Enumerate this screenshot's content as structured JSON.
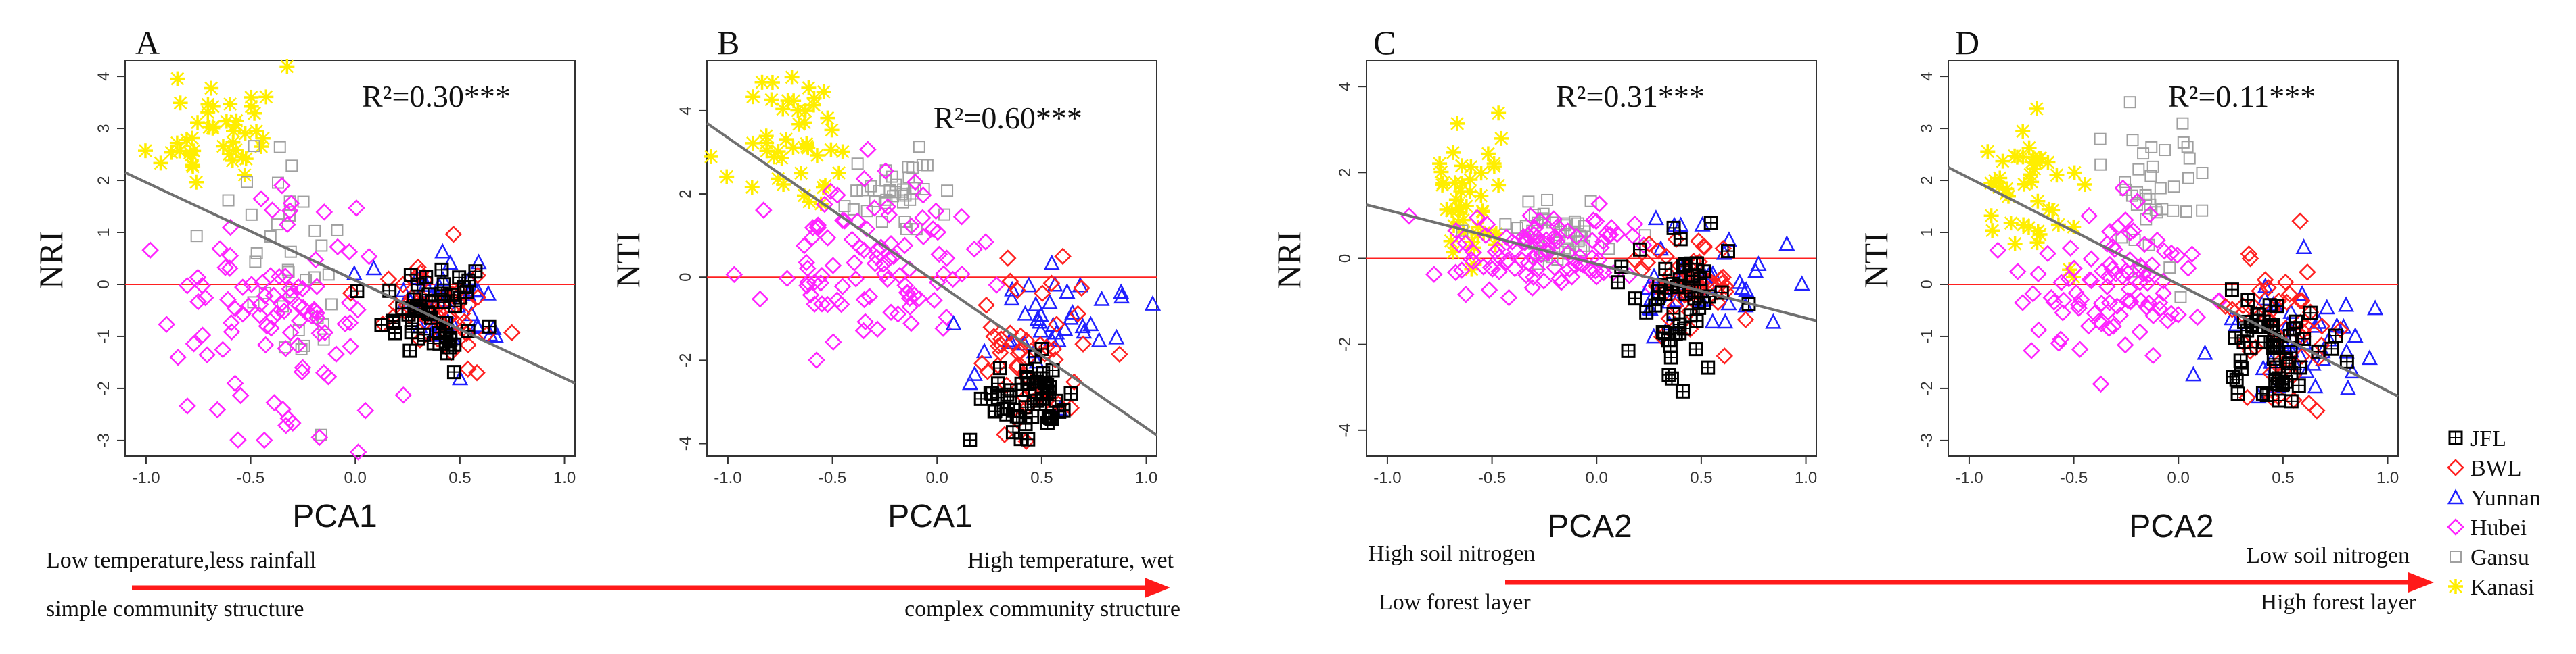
{
  "chart_data": [
    {
      "panel": "A",
      "type": "scatter",
      "xlabel": "PCA1",
      "ylabel": "NRI",
      "r2_label": "R²=0.30***",
      "xlim": [
        -1.1,
        1.05
      ],
      "ylim": [
        -3.3,
        4.3
      ],
      "xticks": [
        -1.0,
        -0.5,
        0.0,
        0.5,
        1.0
      ],
      "xtick_labels": [
        "-1.0",
        "-0.5",
        "0.0",
        "0.5",
        "1.0"
      ],
      "yticks": [
        -3,
        -2,
        -1,
        0,
        1,
        2,
        3,
        4
      ],
      "ytick_labels": [
        "-3",
        "-2",
        "-1",
        "0",
        "1",
        "2",
        "3",
        "4"
      ],
      "reference_line_y": 0,
      "fit_line": [
        [
          -1.1,
          2.15
        ],
        [
          1.05,
          -1.9
        ]
      ],
      "clusters": [
        {
          "group": "Kanasi",
          "cx": -0.65,
          "sx": 0.14,
          "cy": 3.0,
          "sy": 0.6,
          "n": 45,
          "seed": 11
        },
        {
          "group": "Gansu",
          "cx": -0.28,
          "sx": 0.18,
          "cy": 0.5,
          "sy": 1.1,
          "n": 38,
          "seed": 12
        },
        {
          "group": "Hubei",
          "cx": -0.38,
          "sx": 0.26,
          "cy": -0.6,
          "sy": 1.2,
          "n": 95,
          "seed": 13
        },
        {
          "group": "Yunnan",
          "cx": 0.52,
          "sx": 0.18,
          "cy": -0.35,
          "sy": 0.45,
          "n": 40,
          "seed": 14
        },
        {
          "group": "BWL",
          "cx": 0.42,
          "sx": 0.14,
          "cy": -0.45,
          "sy": 0.55,
          "n": 50,
          "seed": 15
        },
        {
          "group": "JFL",
          "cx": 0.38,
          "sx": 0.12,
          "cy": -0.55,
          "sy": 0.45,
          "n": 55,
          "seed": 16
        }
      ]
    },
    {
      "panel": "B",
      "type": "scatter",
      "xlabel": "PCA1",
      "ylabel": "NTI",
      "r2_label": "R²=0.60***",
      "xlim": [
        -1.1,
        1.05
      ],
      "ylim": [
        -4.3,
        5.2
      ],
      "xticks": [
        -1.0,
        -0.5,
        0.0,
        0.5,
        1.0
      ],
      "xtick_labels": [
        "-1.0",
        "-0.5",
        "0.0",
        "0.5",
        "1.0"
      ],
      "yticks": [
        -4,
        -2,
        0,
        2,
        4
      ],
      "ytick_labels": [
        "-4",
        "-2",
        "0",
        "2",
        "4"
      ],
      "reference_line_y": 0,
      "fit_line": [
        [
          -1.1,
          3.7
        ],
        [
          1.05,
          -3.8
        ]
      ],
      "clusters": [
        {
          "group": "Kanasi",
          "cx": -0.65,
          "sx": 0.14,
          "cy": 3.2,
          "sy": 0.85,
          "n": 45,
          "seed": 21
        },
        {
          "group": "Gansu",
          "cx": -0.22,
          "sx": 0.12,
          "cy": 2.0,
          "sy": 0.45,
          "n": 38,
          "seed": 22
        },
        {
          "group": "Hubei",
          "cx": -0.32,
          "sx": 0.24,
          "cy": 0.3,
          "sy": 0.9,
          "n": 95,
          "seed": 23
        },
        {
          "group": "Yunnan",
          "cx": 0.48,
          "sx": 0.2,
          "cy": -1.3,
          "sy": 0.8,
          "n": 40,
          "seed": 24
        },
        {
          "group": "BWL",
          "cx": 0.45,
          "sx": 0.13,
          "cy": -2.0,
          "sy": 0.9,
          "n": 50,
          "seed": 25
        },
        {
          "group": "JFL",
          "cx": 0.45,
          "sx": 0.12,
          "cy": -2.8,
          "sy": 0.55,
          "n": 55,
          "seed": 26
        }
      ]
    },
    {
      "panel": "C",
      "type": "scatter",
      "xlabel": "PCA2",
      "ylabel": "NRI",
      "r2_label": "R²=0.31***",
      "xlim": [
        -1.1,
        1.05
      ],
      "ylim": [
        -4.6,
        4.6
      ],
      "xticks": [
        -1.0,
        -0.5,
        0.0,
        0.5,
        1.0
      ],
      "xtick_labels": [
        "-1.0",
        "-0.5",
        "0.0",
        "0.5",
        "1.0"
      ],
      "yticks": [
        -4,
        -2,
        0,
        2,
        4
      ],
      "ytick_labels": [
        "-4",
        "-2",
        "0",
        "2",
        "4"
      ],
      "reference_line_y": 0,
      "fit_line": [
        [
          -1.1,
          1.25
        ],
        [
          1.05,
          -1.45
        ]
      ],
      "clusters": [
        {
          "group": "Kanasi",
          "cx": -0.63,
          "sx": 0.1,
          "cy": 1.3,
          "sy": 0.85,
          "n": 45,
          "seed": 31
        },
        {
          "group": "Gansu",
          "cx": -0.2,
          "sx": 0.16,
          "cy": 0.65,
          "sy": 0.35,
          "n": 45,
          "seed": 32
        },
        {
          "group": "Hubei",
          "cx": -0.25,
          "sx": 0.22,
          "cy": 0.1,
          "sy": 0.45,
          "n": 95,
          "seed": 33
        },
        {
          "group": "Yunnan",
          "cx": 0.5,
          "sx": 0.2,
          "cy": -0.6,
          "sy": 0.8,
          "n": 40,
          "seed": 34
        },
        {
          "group": "BWL",
          "cx": 0.45,
          "sx": 0.13,
          "cy": -0.5,
          "sy": 0.6,
          "n": 50,
          "seed": 35
        },
        {
          "group": "JFL",
          "cx": 0.4,
          "sx": 0.12,
          "cy": -0.9,
          "sy": 0.9,
          "n": 55,
          "seed": 36
        }
      ]
    },
    {
      "panel": "D",
      "type": "scatter",
      "xlabel": "PCA2",
      "ylabel": "NTI",
      "r2_label": "R²=0.11***",
      "xlim": [
        -1.1,
        1.05
      ],
      "ylim": [
        -3.3,
        4.3
      ],
      "xticks": [
        -1.0,
        -0.5,
        0.0,
        0.5,
        1.0
      ],
      "xtick_labels": [
        "-1.0",
        "-0.5",
        "0.0",
        "0.5",
        "1.0"
      ],
      "yticks": [
        -3,
        -2,
        -1,
        0,
        1,
        2,
        3,
        4
      ],
      "ytick_labels": [
        "-3",
        "-2",
        "-1",
        "0",
        "1",
        "2",
        "3",
        "4"
      ],
      "reference_line_y": 0,
      "fit_line": [
        [
          -1.1,
          2.25
        ],
        [
          1.05,
          -2.15
        ]
      ],
      "clusters": [
        {
          "group": "Kanasi",
          "cx": -0.68,
          "sx": 0.14,
          "cy": 1.8,
          "sy": 0.65,
          "n": 45,
          "seed": 41
        },
        {
          "group": "Gansu",
          "cx": -0.15,
          "sx": 0.14,
          "cy": 1.9,
          "sy": 0.8,
          "n": 40,
          "seed": 42
        },
        {
          "group": "Hubei",
          "cx": -0.32,
          "sx": 0.24,
          "cy": 0.1,
          "sy": 0.75,
          "n": 95,
          "seed": 43
        },
        {
          "group": "Yunnan",
          "cx": 0.58,
          "sx": 0.2,
          "cy": -1.2,
          "sy": 0.8,
          "n": 40,
          "seed": 44
        },
        {
          "group": "BWL",
          "cx": 0.47,
          "sx": 0.12,
          "cy": -0.9,
          "sy": 0.8,
          "n": 50,
          "seed": 45
        },
        {
          "group": "JFL",
          "cx": 0.45,
          "sx": 0.12,
          "cy": -1.2,
          "sy": 0.55,
          "n": 55,
          "seed": 46
        }
      ]
    }
  ],
  "legend": [
    {
      "group": "JFL",
      "label": "JFL",
      "marker": "boxplus",
      "color": "#000000"
    },
    {
      "group": "BWL",
      "label": "BWL",
      "marker": "diamond",
      "color": "#ff2020"
    },
    {
      "group": "Yunnan",
      "label": "Yunnan",
      "marker": "triangle",
      "color": "#2020ff"
    },
    {
      "group": "Hubei",
      "label": "Hubei",
      "marker": "diamond",
      "color": "#ff22ff"
    },
    {
      "group": "Gansu",
      "label": "Gansu",
      "marker": "square",
      "color": "#a0a0a0"
    },
    {
      "group": "Kanasi",
      "label": "Kanasi",
      "marker": "star",
      "color": "#ffee00"
    }
  ],
  "colors": {
    "fit_line": "#707070",
    "reference_line": "#ff2020",
    "arrow": "#ff1a1a",
    "axis": "#333333"
  },
  "captions": {
    "left": {
      "top_left": "Low temperature,less rainfall",
      "bottom_left": "simple community structure",
      "top_right": "High temperature, wet",
      "bottom_right": "complex community structure"
    },
    "right": {
      "top_left": "High soil nitrogen",
      "bottom_left": "Low  forest layer",
      "top_right": "Low soil nitrogen",
      "bottom_right": "High forest layer"
    }
  }
}
